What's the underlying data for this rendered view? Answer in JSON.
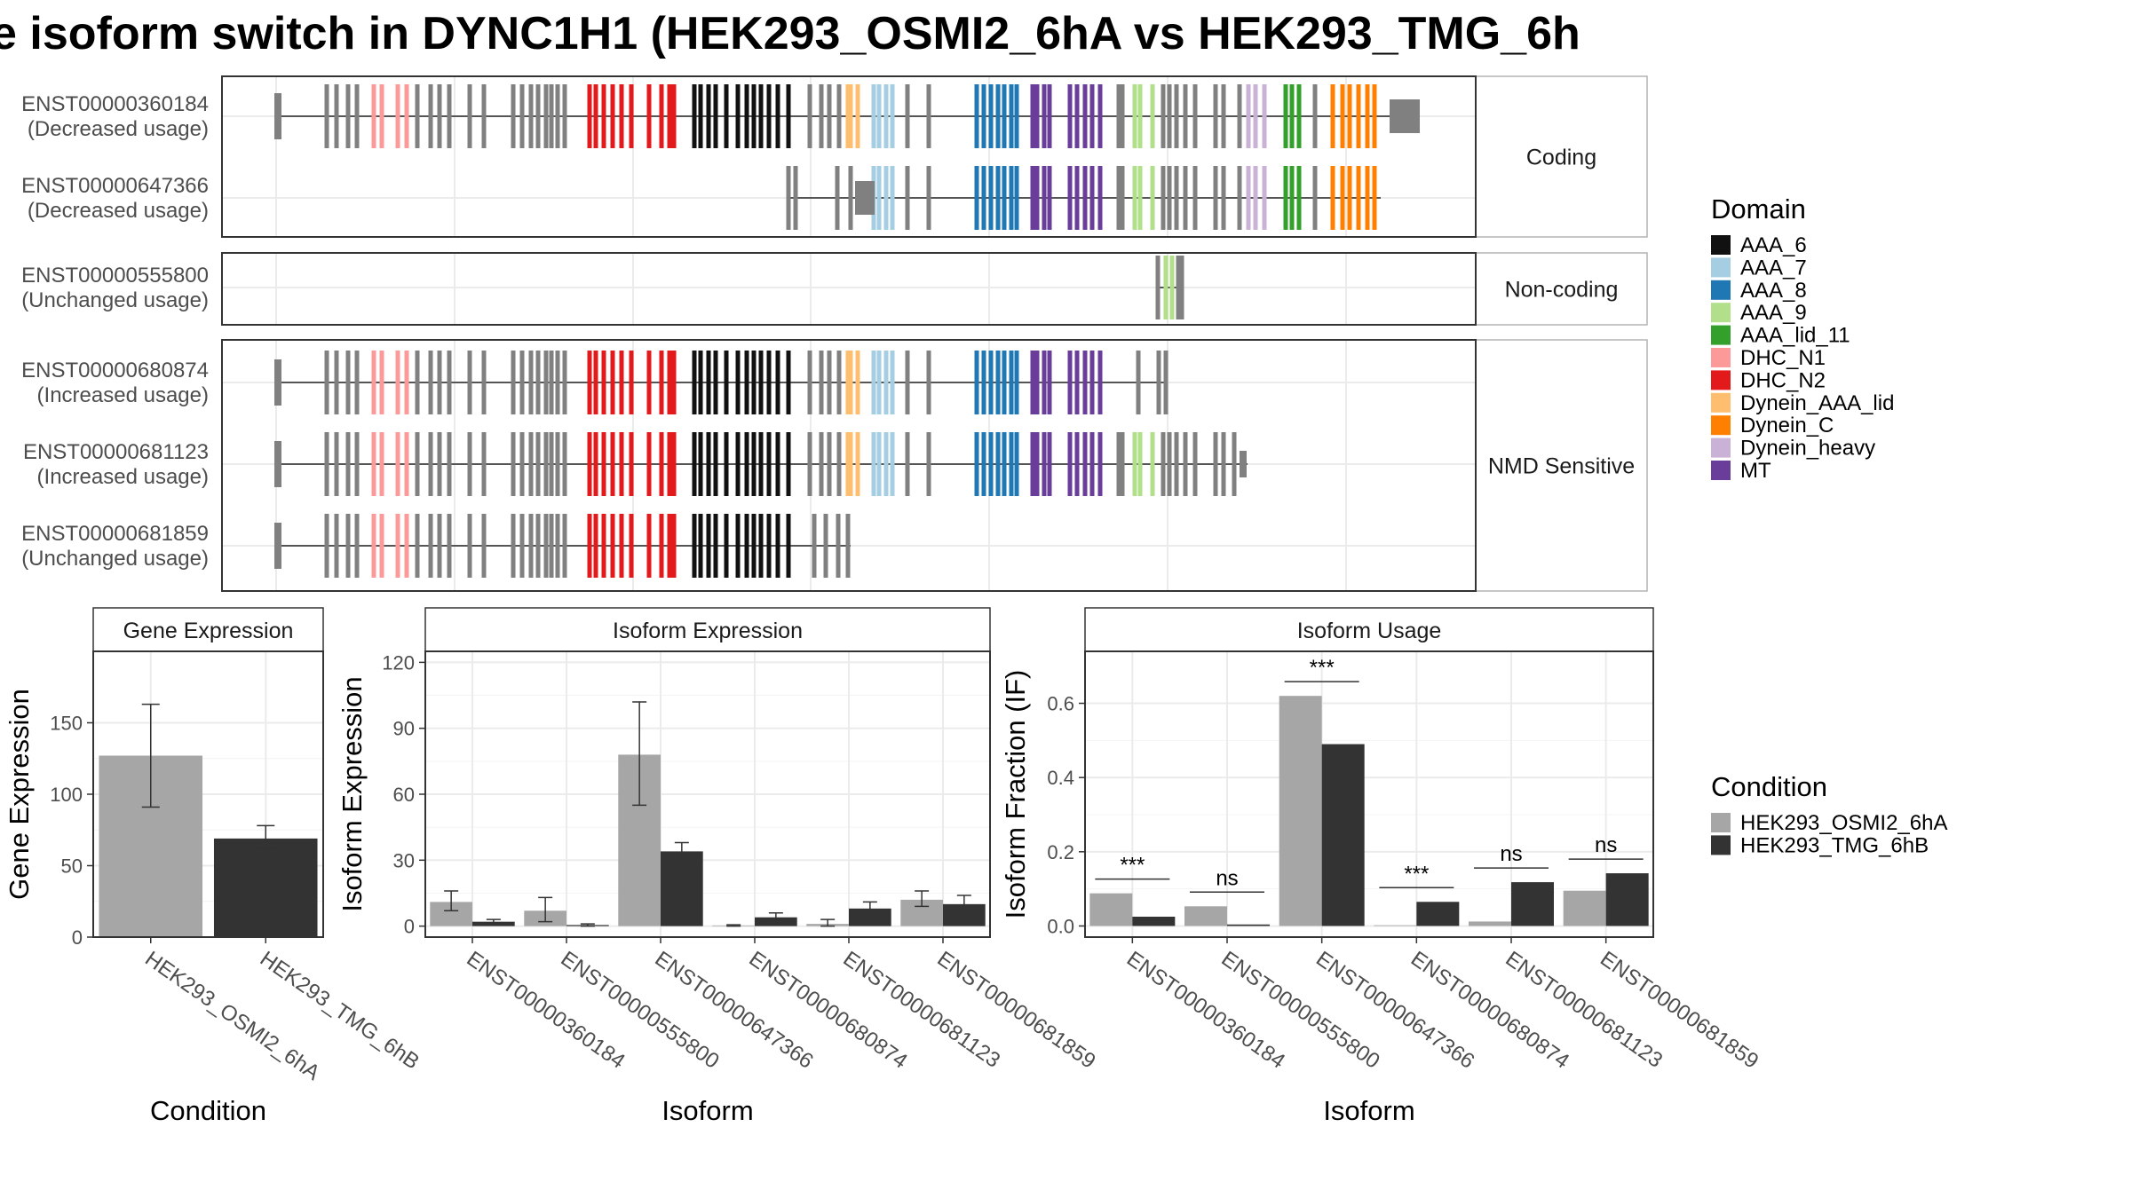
{
  "title": "e isoform switch in DYNC1H1 (HEK293_OSMI2_6hA vs HEK293_TMG_6h",
  "colors": {
    "grey_exon": "#808080",
    "osmi": "#A6A6A6",
    "tmg": "#333333",
    "domains": {
      "AAA_6": "#111111",
      "AAA_7": "#A6CEE3",
      "AAA_8": "#1F78B4",
      "AAA_9": "#B2DF8A",
      "AAA_lid_11": "#33A02C",
      "DHC_N1": "#FB9A99",
      "DHC_N2": "#E31A1C",
      "Dynein_AAA_lid": "#FDBF6F",
      "Dynein_C": "#FF7F00",
      "Dynein_heavy": "#CAB2D6",
      "MT": "#6A3D9A"
    }
  },
  "strips": {
    "coding": "Coding",
    "noncoding": "Non-coding",
    "nmd": "NMD Sensitive"
  },
  "transcripts": [
    {
      "id": "ENST00000360184",
      "usage": "(Decreased usage)",
      "group": "coding"
    },
    {
      "id": "ENST00000647366",
      "usage": "(Decreased usage)",
      "group": "coding"
    },
    {
      "id": "ENST00000555800",
      "usage": "(Unchanged usage)",
      "group": "noncoding"
    },
    {
      "id": "ENST00000680874",
      "usage": "(Increased usage)",
      "group": "nmd"
    },
    {
      "id": "ENST00000681123",
      "usage": "(Increased usage)",
      "group": "nmd"
    },
    {
      "id": "ENST00000681859",
      "usage": "(Unchanged usage)",
      "group": "nmd"
    }
  ],
  "legend": {
    "domain_title": "Domain",
    "domain_items": [
      "AAA_6",
      "AAA_7",
      "AAA_8",
      "AAA_9",
      "AAA_lid_11",
      "DHC_N1",
      "DHC_N2",
      "Dynein_AAA_lid",
      "Dynein_C",
      "Dynein_heavy",
      "MT"
    ],
    "condition_title": "Condition",
    "condition_items": [
      "HEK293_OSMI2_6hA",
      "HEK293_TMG_6hB"
    ]
  },
  "chart_data": [
    {
      "type": "bar",
      "title": "Gene Expression",
      "xlabel": "Condition",
      "ylabel": "Gene Expression",
      "ylim": [
        0,
        200
      ],
      "yticks": [
        0,
        50,
        100,
        150
      ],
      "categories": [
        "HEK293_OSMI2_6hA",
        "HEK293_TMG_6hB"
      ],
      "values": [
        127,
        69
      ],
      "error_low": [
        91,
        62
      ],
      "error_high": [
        163,
        78
      ]
    },
    {
      "type": "bar",
      "title": "Isoform Expression",
      "xlabel": "Isoform",
      "ylabel": "Isoform Expression",
      "ylim": [
        -5,
        125
      ],
      "yticks": [
        0,
        30,
        60,
        90,
        120
      ],
      "categories": [
        "ENST00000360184",
        "ENST00000555800",
        "ENST00000647366",
        "ENST00000680874",
        "ENST00000681123",
        "ENST00000681859"
      ],
      "series": [
        {
          "name": "HEK293_OSMI2_6hA",
          "values": [
            11,
            7,
            78,
            0.3,
            1,
            12
          ],
          "error_low": [
            7,
            2,
            55,
            0,
            0,
            9
          ],
          "error_high": [
            16,
            13,
            102,
            0.6,
            3,
            16
          ]
        },
        {
          "name": "HEK293_TMG_6hB",
          "values": [
            2,
            0.5,
            34,
            4,
            8,
            10
          ],
          "error_low": [
            1,
            0,
            30,
            3,
            6,
            7
          ],
          "error_high": [
            3,
            1,
            38,
            6,
            11,
            14
          ]
        }
      ]
    },
    {
      "type": "bar",
      "title": "Isoform Usage",
      "xlabel": "Isoform",
      "ylabel": "Isoform Fraction (IF)",
      "ylim": [
        -0.03,
        0.74
      ],
      "yticks": [
        0.0,
        0.2,
        0.4,
        0.6
      ],
      "tick_labels": [
        "0.0",
        "0.2",
        "0.4",
        "0.6"
      ],
      "categories": [
        "ENST00000360184",
        "ENST00000555800",
        "ENST00000647366",
        "ENST00000680874",
        "ENST00000681123",
        "ENST00000681859"
      ],
      "series": [
        {
          "name": "HEK293_OSMI2_6hA",
          "values": [
            0.088,
            0.053,
            0.62,
            0.002,
            0.012,
            0.095
          ]
        },
        {
          "name": "HEK293_TMG_6hB",
          "values": [
            0.025,
            0.004,
            0.49,
            0.065,
            0.118,
            0.142
          ]
        }
      ],
      "significance": [
        "***",
        "ns",
        "***",
        "***",
        "ns",
        "ns"
      ]
    }
  ]
}
